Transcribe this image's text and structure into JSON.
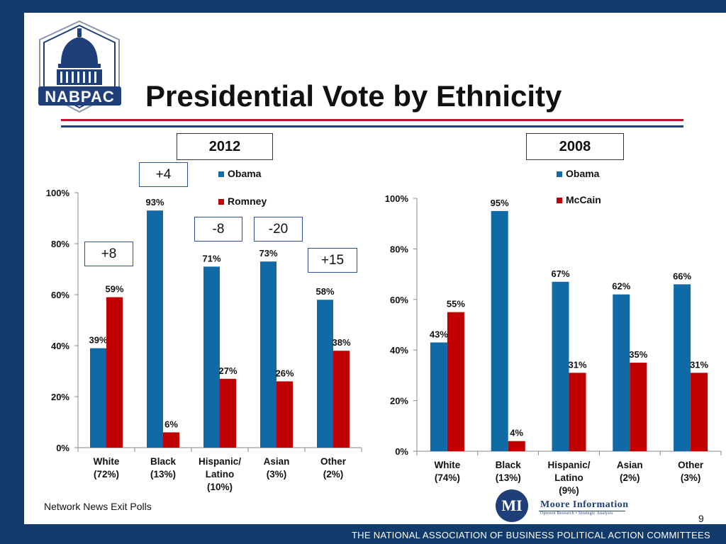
{
  "slide": {
    "title": "Presidential Vote by Ethnicity",
    "logo_text": "NABPAC",
    "footer": "THE NATIONAL ASSOCIATION OF BUSINESS POLITICAL ACTION COMMITTEES",
    "source": "Network News Exit Polls",
    "page_number": "9",
    "moore_logo_letter": "MI",
    "moore_name": "Moore Information",
    "moore_tagline": "Opinion Research • Strategic Analysis",
    "year_2012": "2012",
    "year_2008": "2008",
    "differences": {
      "white": "+8",
      "black": "+4",
      "hispanic": "-8",
      "asian": "-20",
      "other": "+15"
    },
    "colors": {
      "navy": "#123a6b",
      "blue": "#0f6aa6",
      "red": "#c00000",
      "rule_red": "#c8102e",
      "rule_blue": "#1f3f7a"
    }
  },
  "chart_data": [
    {
      "type": "bar",
      "categories": [
        [
          "White",
          "(72%)"
        ],
        [
          "Black",
          "(13%)"
        ],
        [
          "Hispanic/",
          "Latino",
          "(10%)"
        ],
        [
          "Asian",
          "(3%)"
        ],
        [
          "Other",
          "(2%)"
        ]
      ],
      "series": [
        {
          "name": "Obama",
          "color": "#0f6aa6",
          "values": [
            39,
            93,
            71,
            73,
            58
          ],
          "labels": [
            "39%",
            "93%",
            "71%",
            "73%",
            "58%"
          ]
        },
        {
          "name": "Romney",
          "color": "#c00000",
          "values": [
            59,
            6,
            27,
            26,
            38
          ],
          "labels": [
            "59%",
            "6%",
            "27%",
            "26%",
            "38%"
          ]
        }
      ],
      "ylim": [
        0,
        100
      ],
      "yticks": [
        0,
        20,
        40,
        60,
        80,
        100
      ],
      "ytick_labels": [
        "0%",
        "20%",
        "40%",
        "60%",
        "80%",
        "100%"
      ],
      "grid": false,
      "legend": "top-right"
    },
    {
      "type": "bar",
      "categories": [
        [
          "White",
          "(74%)"
        ],
        [
          "Black",
          "(13%)"
        ],
        [
          "Hispanic/",
          "Latino",
          "(9%)"
        ],
        [
          "Asian",
          "(2%)"
        ],
        [
          "Other",
          "(3%)"
        ]
      ],
      "series": [
        {
          "name": "Obama",
          "color": "#0f6aa6",
          "values": [
            43,
            95,
            67,
            62,
            66
          ],
          "labels": [
            "43%",
            "95%",
            "67%",
            "62%",
            "66%"
          ]
        },
        {
          "name": "McCain",
          "color": "#c00000",
          "values": [
            55,
            4,
            31,
            35,
            31
          ],
          "labels": [
            "55%",
            "4%",
            "31%",
            "35%",
            "31%"
          ]
        }
      ],
      "ylim": [
        0,
        100
      ],
      "yticks": [
        0,
        20,
        40,
        60,
        80,
        100
      ],
      "ytick_labels": [
        "0%",
        "20%",
        "40%",
        "60%",
        "80%",
        "100%"
      ],
      "grid": false,
      "legend": "top-right"
    }
  ]
}
